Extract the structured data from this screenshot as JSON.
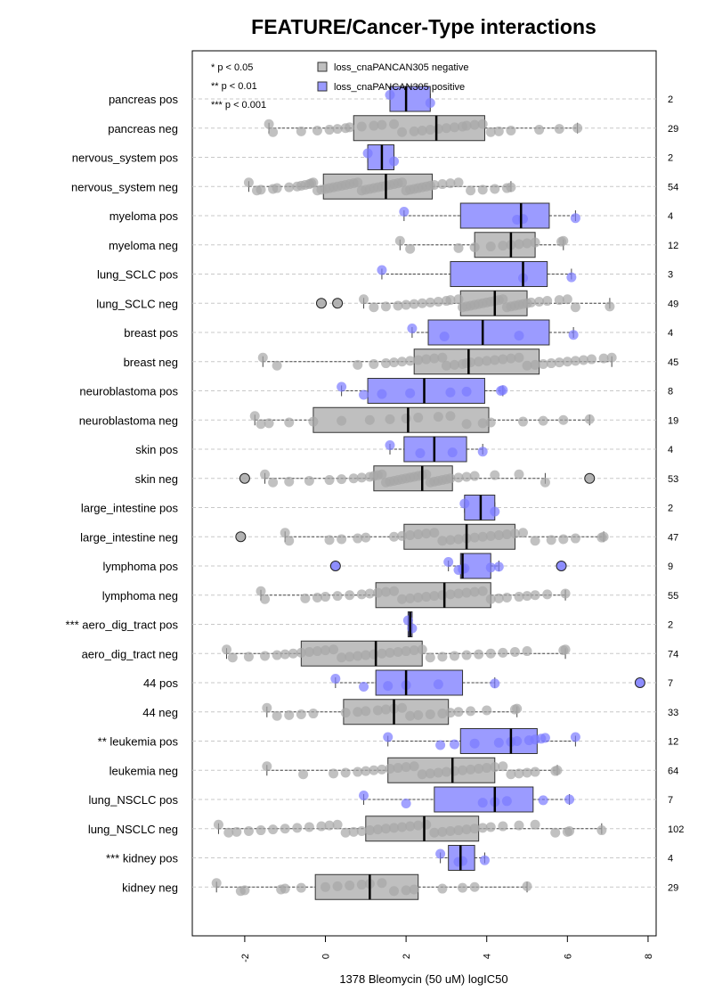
{
  "chart_data": {
    "type": "boxplot",
    "title": "FEATURE/Cancer-Type interactions",
    "xlabel": "1378 Bleomycin (50 uM) logIC50",
    "xlim": [
      -3.3,
      8.2
    ],
    "xticks": [
      -2,
      0,
      2,
      4,
      6,
      8
    ],
    "orientation": "horizontal",
    "grid": "horizontal dashed",
    "legend": {
      "placement": "top-left",
      "significance": [
        "* p < 0.05",
        "** p < 0.01",
        "*** p < 0.001"
      ],
      "entries": [
        {
          "label": "loss_cnaPANCAN305 negative",
          "color": "#bfbfbf"
        },
        {
          "label": "loss_cnaPANCAN305 positive",
          "color": "#9b9bff"
        }
      ]
    },
    "colors": {
      "negative_box": "#bfbfbf",
      "positive_box": "#9b9bff",
      "negative_point": "#a6a6a6",
      "positive_point": "#7a7aff"
    },
    "rows": [
      {
        "label": "pancreas pos",
        "n": "2",
        "group": "pos",
        "min": 1.6,
        "q1": 1.6,
        "median": 2.0,
        "q3": 2.6,
        "max": 2.6,
        "points": [
          1.6,
          2.6
        ],
        "outliers": []
      },
      {
        "label": "pancreas neg",
        "n": "29",
        "group": "neg",
        "min": -1.4,
        "q1": 0.7,
        "median": 2.75,
        "q3": 3.95,
        "max": 6.25,
        "points": [
          -1.4,
          -1.3,
          -0.6,
          -0.2,
          0.1,
          0.3,
          0.5,
          0.6,
          0.9,
          1.2,
          1.4,
          1.7,
          1.9,
          2.2,
          2.4,
          2.6,
          2.8,
          3.0,
          3.2,
          3.4,
          3.5,
          3.7,
          3.9,
          4.1,
          4.3,
          4.6,
          5.3,
          5.8,
          6.25
        ],
        "outliers": []
      },
      {
        "label": "nervous_system pos",
        "n": "2",
        "group": "pos",
        "min": 1.05,
        "q1": 1.05,
        "median": 1.4,
        "q3": 1.7,
        "max": 1.7,
        "points": [
          1.05,
          1.7
        ],
        "outliers": []
      },
      {
        "label": "nervous_system neg",
        "n": "54",
        "group": "neg",
        "min": -1.9,
        "q1": -0.05,
        "median": 1.5,
        "q3": 2.65,
        "max": 4.6,
        "points": [
          -1.9,
          -1.7,
          -1.6,
          -1.3,
          -1.2,
          -0.9,
          -0.7,
          -0.6,
          -0.5,
          -0.4,
          -0.35,
          -0.3,
          -0.2,
          -0.1,
          0.0,
          0.1,
          0.2,
          0.3,
          0.4,
          0.5,
          0.6,
          0.7,
          0.8,
          0.9,
          1.0,
          1.1,
          1.2,
          1.3,
          1.4,
          1.5,
          1.6,
          1.7,
          1.8,
          1.9,
          2.0,
          2.1,
          2.2,
          2.3,
          2.4,
          2.5,
          2.6,
          2.7,
          2.9,
          3.1,
          3.3,
          3.6,
          3.9,
          4.2,
          4.5,
          4.6
        ],
        "outliers": []
      },
      {
        "label": "myeloma pos",
        "n": "4",
        "group": "pos",
        "min": 1.95,
        "q1": 3.35,
        "median": 4.85,
        "q3": 5.55,
        "max": 6.2,
        "points": [
          1.95,
          4.75,
          4.9,
          6.2
        ],
        "outliers": []
      },
      {
        "label": "myeloma neg",
        "n": "12",
        "group": "neg",
        "min": 1.85,
        "q1": 3.7,
        "median": 4.6,
        "q3": 5.2,
        "max": 5.9,
        "points": [
          1.85,
          2.1,
          3.3,
          3.7,
          4.1,
          4.4,
          4.6,
          4.8,
          5.0,
          5.2,
          5.85,
          5.9
        ],
        "outliers": []
      },
      {
        "label": "lung_SCLC pos",
        "n": "3",
        "group": "pos",
        "min": 1.4,
        "q1": 3.1,
        "median": 4.9,
        "q3": 5.5,
        "max": 6.1,
        "points": [
          1.4,
          4.9,
          6.1
        ],
        "outliers": []
      },
      {
        "label": "lung_SCLC neg",
        "n": "49",
        "group": "neg",
        "min": 0.95,
        "q1": 3.35,
        "median": 4.2,
        "q3": 5.0,
        "max": 7.05,
        "points": [
          0.95,
          1.2,
          1.5,
          1.8,
          2.0,
          2.2,
          2.4,
          2.6,
          2.8,
          3.0,
          3.1,
          3.3,
          3.4,
          3.5,
          3.6,
          3.7,
          3.8,
          3.9,
          4.0,
          4.1,
          4.2,
          4.3,
          4.4,
          4.5,
          4.6,
          4.7,
          4.8,
          4.9,
          5.0,
          5.1,
          5.3,
          5.5,
          5.8,
          6.0,
          6.2,
          7.05
        ],
        "outliers": [
          -0.1,
          0.3
        ]
      },
      {
        "label": "breast pos",
        "n": "4",
        "group": "pos",
        "min": 2.15,
        "q1": 2.55,
        "median": 3.9,
        "q3": 5.55,
        "max": 6.15,
        "points": [
          2.15,
          2.95,
          4.8,
          6.15
        ],
        "outliers": []
      },
      {
        "label": "breast neg",
        "n": "45",
        "group": "neg",
        "min": -1.55,
        "q1": 2.2,
        "median": 3.55,
        "q3": 5.3,
        "max": 7.1,
        "points": [
          -1.55,
          -1.2,
          0.8,
          1.2,
          1.5,
          1.7,
          1.9,
          2.1,
          2.3,
          2.5,
          2.7,
          2.9,
          3.0,
          3.2,
          3.4,
          3.5,
          3.6,
          3.8,
          4.0,
          4.2,
          4.4,
          4.6,
          4.8,
          5.0,
          5.2,
          5.4,
          5.6,
          5.8,
          6.0,
          6.2,
          6.4,
          6.6,
          6.9,
          7.1
        ],
        "outliers": []
      },
      {
        "label": "neuroblastoma pos",
        "n": "8",
        "group": "pos",
        "min": 0.4,
        "q1": 1.05,
        "median": 2.45,
        "q3": 3.95,
        "max": 4.4,
        "points": [
          0.4,
          0.95,
          1.4,
          2.1,
          3.1,
          3.5,
          4.35,
          4.4
        ],
        "outliers": []
      },
      {
        "label": "neuroblastoma neg",
        "n": "19",
        "group": "neg",
        "min": -1.75,
        "q1": -0.3,
        "median": 2.05,
        "q3": 4.05,
        "max": 6.55,
        "points": [
          -1.75,
          -1.6,
          -1.4,
          -0.9,
          -0.3,
          0.4,
          1.1,
          1.6,
          2.0,
          2.3,
          2.8,
          3.1,
          3.5,
          3.9,
          4.1,
          4.9,
          5.4,
          5.9,
          6.55
        ],
        "outliers": []
      },
      {
        "label": "skin pos",
        "n": "4",
        "group": "pos",
        "min": 1.6,
        "q1": 1.95,
        "median": 2.7,
        "q3": 3.5,
        "max": 3.9,
        "points": [
          1.6,
          2.35,
          3.15,
          3.9
        ],
        "outliers": []
      },
      {
        "label": "skin neg",
        "n": "53",
        "group": "neg",
        "min": -1.5,
        "q1": 1.2,
        "median": 2.4,
        "q3": 3.15,
        "max": 5.45,
        "points": [
          -1.5,
          -1.3,
          -0.9,
          -0.4,
          0.1,
          0.4,
          0.7,
          0.9,
          1.1,
          1.2,
          1.3,
          1.4,
          1.5,
          1.6,
          1.7,
          1.8,
          1.9,
          2.0,
          2.1,
          2.2,
          2.3,
          2.4,
          2.5,
          2.6,
          2.7,
          2.8,
          2.9,
          3.0,
          3.1,
          3.3,
          3.5,
          3.7,
          4.2,
          4.8,
          5.45
        ],
        "outliers": [
          -2.0,
          6.55
        ]
      },
      {
        "label": "large_intestine pos",
        "n": "2",
        "group": "pos",
        "min": 3.45,
        "q1": 3.45,
        "median": 3.85,
        "q3": 4.2,
        "max": 4.2,
        "points": [
          3.45,
          4.2
        ],
        "outliers": []
      },
      {
        "label": "large_intestine neg",
        "n": "47",
        "group": "neg",
        "min": -1.0,
        "q1": 1.95,
        "median": 3.5,
        "q3": 4.7,
        "max": 6.9,
        "points": [
          -1.0,
          -0.9,
          0.1,
          0.4,
          0.8,
          1.0,
          1.7,
          1.9,
          2.1,
          2.3,
          2.5,
          2.7,
          2.9,
          3.1,
          3.3,
          3.5,
          3.7,
          3.9,
          4.1,
          4.3,
          4.5,
          4.7,
          4.9,
          5.2,
          5.6,
          5.9,
          6.2,
          6.85,
          6.9
        ],
        "outliers": [
          -2.1
        ]
      },
      {
        "label": "lymphoma pos",
        "n": "9",
        "group": "pos",
        "min": 3.05,
        "q1": 3.35,
        "median": 3.4,
        "q3": 4.1,
        "max": 4.3,
        "points": [
          3.05,
          3.3,
          3.4,
          3.45,
          4.1,
          4.3
        ],
        "outliers": [
          0.25,
          5.85
        ]
      },
      {
        "label": "lymphoma neg",
        "n": "55",
        "group": "neg",
        "min": -1.6,
        "q1": 1.25,
        "median": 2.95,
        "q3": 4.1,
        "max": 5.95,
        "points": [
          -1.6,
          -1.5,
          -0.5,
          -0.2,
          0.0,
          0.3,
          0.6,
          0.9,
          1.1,
          1.3,
          1.5,
          1.7,
          1.9,
          2.1,
          2.3,
          2.5,
          2.7,
          2.9,
          3.1,
          3.3,
          3.5,
          3.7,
          3.9,
          4.1,
          4.3,
          4.5,
          4.8,
          5.0,
          5.2,
          5.5,
          5.95
        ],
        "outliers": []
      },
      {
        "label": "*** aero_dig_tract pos",
        "n": "2",
        "group": "pos",
        "min": 2.05,
        "q1": 2.05,
        "median": 2.1,
        "q3": 2.15,
        "max": 2.15,
        "points": [
          2.05,
          2.15
        ],
        "outliers": []
      },
      {
        "label": "aero_dig_tract neg",
        "n": "74",
        "group": "neg",
        "min": -2.45,
        "q1": -0.6,
        "median": 1.25,
        "q3": 2.4,
        "max": 5.95,
        "points": [
          -2.45,
          -2.3,
          -1.9,
          -1.5,
          -1.2,
          -1.0,
          -0.8,
          -0.6,
          -0.4,
          -0.2,
          0.0,
          0.2,
          0.4,
          0.6,
          0.8,
          1.0,
          1.2,
          1.4,
          1.6,
          1.8,
          2.0,
          2.2,
          2.4,
          2.6,
          2.9,
          3.2,
          3.5,
          3.8,
          4.1,
          4.4,
          4.7,
          5.0,
          5.9,
          5.95
        ],
        "outliers": []
      },
      {
        "label": "44 pos",
        "n": "7",
        "group": "pos",
        "min": 0.25,
        "q1": 1.25,
        "median": 2.0,
        "q3": 3.4,
        "max": 4.2,
        "points": [
          0.25,
          0.95,
          1.55,
          2.0,
          2.8,
          4.2
        ],
        "outliers": [
          7.8
        ]
      },
      {
        "label": "44 neg",
        "n": "33",
        "group": "neg",
        "min": -1.45,
        "q1": 0.45,
        "median": 1.7,
        "q3": 3.05,
        "max": 4.75,
        "points": [
          -1.45,
          -1.2,
          -0.9,
          -0.6,
          -0.3,
          0.5,
          0.8,
          1.0,
          1.3,
          1.5,
          1.7,
          1.9,
          2.1,
          2.3,
          2.6,
          2.9,
          3.1,
          3.3,
          3.6,
          4.0,
          4.7,
          4.75
        ],
        "outliers": []
      },
      {
        "label": "** leukemia pos",
        "n": "12",
        "group": "pos",
        "min": 1.55,
        "q1": 3.35,
        "median": 4.6,
        "q3": 5.25,
        "max": 6.2,
        "points": [
          1.55,
          2.85,
          3.2,
          3.7,
          4.3,
          4.6,
          4.75,
          5.05,
          5.2,
          5.35,
          5.45,
          6.2
        ],
        "outliers": []
      },
      {
        "label": "leukemia neg",
        "n": "64",
        "group": "neg",
        "min": -1.45,
        "q1": 1.55,
        "median": 3.15,
        "q3": 4.2,
        "max": 5.75,
        "points": [
          -1.45,
          -0.55,
          0.2,
          0.5,
          0.8,
          1.0,
          1.2,
          1.4,
          1.6,
          1.8,
          2.0,
          2.2,
          2.4,
          2.6,
          2.8,
          3.0,
          3.2,
          3.4,
          3.6,
          3.8,
          4.0,
          4.2,
          4.4,
          4.6,
          4.8,
          5.0,
          5.2,
          5.7,
          5.75
        ],
        "outliers": []
      },
      {
        "label": "lung_NSCLC pos",
        "n": "7",
        "group": "pos",
        "min": 0.95,
        "q1": 2.7,
        "median": 4.2,
        "q3": 5.15,
        "max": 6.05,
        "points": [
          0.95,
          2.0,
          3.9,
          4.2,
          4.5,
          5.4,
          6.05
        ],
        "outliers": []
      },
      {
        "label": "lung_NSCLC neg",
        "n": "102",
        "group": "neg",
        "min": -2.65,
        "q1": 1.0,
        "median": 2.45,
        "q3": 3.8,
        "max": 6.85,
        "points": [
          -2.65,
          -2.4,
          -2.2,
          -1.9,
          -1.6,
          -1.3,
          -1.0,
          -0.7,
          -0.4,
          -0.1,
          0.1,
          0.3,
          0.5,
          0.7,
          0.9,
          1.1,
          1.3,
          1.5,
          1.7,
          1.9,
          2.1,
          2.3,
          2.5,
          2.7,
          2.9,
          3.1,
          3.3,
          3.5,
          3.7,
          3.9,
          4.1,
          4.4,
          4.8,
          5.2,
          5.7,
          6.0,
          6.05,
          6.85
        ],
        "outliers": []
      },
      {
        "label": "*** kidney pos",
        "n": "4",
        "group": "pos",
        "min": 2.85,
        "q1": 3.05,
        "median": 3.35,
        "q3": 3.7,
        "max": 3.95,
        "points": [
          2.85,
          3.3,
          3.4,
          3.95
        ],
        "outliers": []
      },
      {
        "label": "kidney neg",
        "n": "29",
        "group": "neg",
        "min": -2.7,
        "q1": -0.25,
        "median": 1.1,
        "q3": 2.3,
        "max": 5.0,
        "points": [
          -2.7,
          -2.1,
          -2.0,
          -1.1,
          -1.0,
          -0.6,
          0.0,
          0.3,
          0.6,
          0.9,
          1.1,
          1.4,
          1.7,
          2.0,
          2.2,
          2.9,
          3.4,
          3.7,
          5.0
        ],
        "outliers": []
      }
    ]
  }
}
